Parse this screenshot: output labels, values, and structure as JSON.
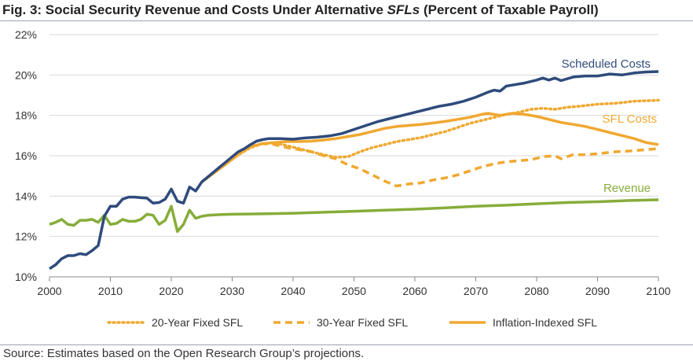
{
  "figure": {
    "title_prefix": "Fig. 3: Social Security Revenue and Costs Under Alternative ",
    "title_italic": "SFLs",
    "title_suffix": " (Percent of Taxable Payroll)",
    "source": "Source: Estimates based on the Open Research Group’s projections."
  },
  "colors": {
    "scheduled": "#2f4b7c",
    "sfl": "#f0a830",
    "revenue": "#86ad3a",
    "grid": "#d9d9d9",
    "axis": "#888888",
    "text": "#333333"
  },
  "chart_data": {
    "type": "line",
    "title": "Social Security Revenue and Costs Under Alternative SFLs (Percent of Taxable Payroll)",
    "xlabel": "",
    "ylabel": "",
    "xlim": [
      2000,
      2100
    ],
    "ylim": [
      10,
      22
    ],
    "x_ticks": [
      2000,
      2010,
      2020,
      2030,
      2040,
      2050,
      2060,
      2070,
      2080,
      2090,
      2100
    ],
    "x_tick_labels": [
      "2000",
      "2010",
      "2020",
      "2030",
      "2040",
      "2050",
      "2060",
      "2070",
      "2080",
      "2090",
      "2100"
    ],
    "y_ticks": [
      10,
      12,
      14,
      16,
      18,
      20,
      22
    ],
    "y_tick_labels": [
      "10%",
      "12%",
      "14%",
      "16%",
      "18%",
      "20%",
      "22%"
    ],
    "grid": true,
    "legend_position": "bottom",
    "annotations": [
      {
        "text": "Scheduled Costs",
        "series": "Scheduled Costs"
      },
      {
        "text": "SFL Costs",
        "series": "Inflation-Indexed SFL"
      },
      {
        "text": "Revenue",
        "series": "Revenue"
      }
    ],
    "series": [
      {
        "name": "Scheduled Costs",
        "style": "solid",
        "in_legend": false,
        "points": [
          [
            2000,
            10.4
          ],
          [
            2001,
            10.6
          ],
          [
            2002,
            10.9
          ],
          [
            2003,
            11.05
          ],
          [
            2004,
            11.05
          ],
          [
            2005,
            11.15
          ],
          [
            2006,
            11.1
          ],
          [
            2007,
            11.3
          ],
          [
            2008,
            11.55
          ],
          [
            2009,
            13.0
          ],
          [
            2010,
            13.5
          ],
          [
            2011,
            13.5
          ],
          [
            2012,
            13.85
          ],
          [
            2013,
            13.95
          ],
          [
            2014,
            13.95
          ],
          [
            2015,
            13.92
          ],
          [
            2016,
            13.9
          ],
          [
            2017,
            13.65
          ],
          [
            2018,
            13.68
          ],
          [
            2019,
            13.85
          ],
          [
            2020,
            14.35
          ],
          [
            2021,
            13.75
          ],
          [
            2022,
            13.65
          ],
          [
            2023,
            14.45
          ],
          [
            2024,
            14.25
          ],
          [
            2025,
            14.7
          ],
          [
            2026,
            14.95
          ],
          [
            2027,
            15.2
          ],
          [
            2028,
            15.45
          ],
          [
            2029,
            15.7
          ],
          [
            2030,
            15.95
          ],
          [
            2031,
            16.2
          ],
          [
            2032,
            16.35
          ],
          [
            2033,
            16.55
          ],
          [
            2034,
            16.72
          ],
          [
            2035,
            16.8
          ],
          [
            2036,
            16.85
          ],
          [
            2037,
            16.85
          ],
          [
            2038,
            16.85
          ],
          [
            2040,
            16.82
          ],
          [
            2042,
            16.88
          ],
          [
            2044,
            16.92
          ],
          [
            2046,
            16.98
          ],
          [
            2048,
            17.1
          ],
          [
            2050,
            17.3
          ],
          [
            2052,
            17.5
          ],
          [
            2054,
            17.7
          ],
          [
            2056,
            17.85
          ],
          [
            2058,
            18.0
          ],
          [
            2060,
            18.15
          ],
          [
            2062,
            18.3
          ],
          [
            2064,
            18.45
          ],
          [
            2066,
            18.55
          ],
          [
            2068,
            18.7
          ],
          [
            2070,
            18.9
          ],
          [
            2072,
            19.15
          ],
          [
            2073,
            19.25
          ],
          [
            2074,
            19.2
          ],
          [
            2075,
            19.45
          ],
          [
            2076,
            19.5
          ],
          [
            2078,
            19.6
          ],
          [
            2080,
            19.75
          ],
          [
            2081,
            19.85
          ],
          [
            2082,
            19.75
          ],
          [
            2083,
            19.85
          ],
          [
            2084,
            19.72
          ],
          [
            2086,
            19.9
          ],
          [
            2088,
            19.95
          ],
          [
            2090,
            19.95
          ],
          [
            2092,
            20.05
          ],
          [
            2094,
            20.0
          ],
          [
            2096,
            20.1
          ],
          [
            2098,
            20.15
          ],
          [
            2100,
            20.17
          ]
        ]
      },
      {
        "name": "Revenue",
        "style": "solid",
        "in_legend": false,
        "points": [
          [
            2000,
            12.6
          ],
          [
            2001,
            12.7
          ],
          [
            2002,
            12.85
          ],
          [
            2003,
            12.6
          ],
          [
            2004,
            12.55
          ],
          [
            2005,
            12.8
          ],
          [
            2006,
            12.8
          ],
          [
            2007,
            12.85
          ],
          [
            2008,
            12.7
          ],
          [
            2009,
            13.05
          ],
          [
            2010,
            12.6
          ],
          [
            2011,
            12.65
          ],
          [
            2012,
            12.85
          ],
          [
            2013,
            12.75
          ],
          [
            2014,
            12.75
          ],
          [
            2015,
            12.85
          ],
          [
            2016,
            13.1
          ],
          [
            2017,
            13.05
          ],
          [
            2018,
            12.6
          ],
          [
            2019,
            12.8
          ],
          [
            2020,
            13.5
          ],
          [
            2021,
            12.25
          ],
          [
            2022,
            12.6
          ],
          [
            2023,
            13.3
          ],
          [
            2024,
            12.9
          ],
          [
            2025,
            13.0
          ],
          [
            2026,
            13.05
          ],
          [
            2028,
            13.08
          ],
          [
            2030,
            13.1
          ],
          [
            2035,
            13.12
          ],
          [
            2040,
            13.15
          ],
          [
            2045,
            13.2
          ],
          [
            2050,
            13.25
          ],
          [
            2055,
            13.3
          ],
          [
            2060,
            13.35
          ],
          [
            2065,
            13.42
          ],
          [
            2070,
            13.5
          ],
          [
            2075,
            13.55
          ],
          [
            2080,
            13.62
          ],
          [
            2085,
            13.68
          ],
          [
            2090,
            13.72
          ],
          [
            2095,
            13.78
          ],
          [
            2100,
            13.82
          ]
        ]
      },
      {
        "name": "20-Year Fixed SFL",
        "style": "dotted",
        "in_legend": true,
        "points": [
          [
            2025,
            14.7
          ],
          [
            2027,
            15.15
          ],
          [
            2029,
            15.6
          ],
          [
            2031,
            16.05
          ],
          [
            2033,
            16.4
          ],
          [
            2035,
            16.6
          ],
          [
            2037,
            16.65
          ],
          [
            2039,
            16.5
          ],
          [
            2041,
            16.35
          ],
          [
            2043,
            16.2
          ],
          [
            2045,
            16.05
          ],
          [
            2047,
            15.92
          ],
          [
            2049,
            15.95
          ],
          [
            2051,
            16.2
          ],
          [
            2053,
            16.4
          ],
          [
            2055,
            16.55
          ],
          [
            2057,
            16.7
          ],
          [
            2059,
            16.8
          ],
          [
            2061,
            16.9
          ],
          [
            2063,
            17.05
          ],
          [
            2065,
            17.2
          ],
          [
            2067,
            17.4
          ],
          [
            2069,
            17.6
          ],
          [
            2071,
            17.75
          ],
          [
            2073,
            17.9
          ],
          [
            2075,
            18.05
          ],
          [
            2077,
            18.15
          ],
          [
            2079,
            18.3
          ],
          [
            2081,
            18.35
          ],
          [
            2083,
            18.3
          ],
          [
            2085,
            18.4
          ],
          [
            2087,
            18.45
          ],
          [
            2090,
            18.55
          ],
          [
            2093,
            18.6
          ],
          [
            2096,
            18.7
          ],
          [
            2100,
            18.75
          ]
        ]
      },
      {
        "name": "30-Year Fixed SFL",
        "style": "dashed",
        "in_legend": true,
        "points": [
          [
            2025,
            14.7
          ],
          [
            2027,
            15.15
          ],
          [
            2029,
            15.6
          ],
          [
            2031,
            16.05
          ],
          [
            2033,
            16.45
          ],
          [
            2035,
            16.6
          ],
          [
            2037,
            16.55
          ],
          [
            2039,
            16.4
          ],
          [
            2041,
            16.3
          ],
          [
            2043,
            16.2
          ],
          [
            2045,
            16.0
          ],
          [
            2047,
            15.85
          ],
          [
            2049,
            15.55
          ],
          [
            2051,
            15.35
          ],
          [
            2053,
            15.05
          ],
          [
            2055,
            14.75
          ],
          [
            2057,
            14.5
          ],
          [
            2059,
            14.6
          ],
          [
            2061,
            14.65
          ],
          [
            2063,
            14.8
          ],
          [
            2065,
            14.9
          ],
          [
            2067,
            15.05
          ],
          [
            2069,
            15.25
          ],
          [
            2071,
            15.45
          ],
          [
            2073,
            15.6
          ],
          [
            2075,
            15.7
          ],
          [
            2077,
            15.75
          ],
          [
            2079,
            15.8
          ],
          [
            2081,
            15.95
          ],
          [
            2083,
            16.0
          ],
          [
            2084,
            15.85
          ],
          [
            2086,
            16.05
          ],
          [
            2088,
            16.05
          ],
          [
            2090,
            16.1
          ],
          [
            2093,
            16.2
          ],
          [
            2096,
            16.25
          ],
          [
            2100,
            16.35
          ]
        ]
      },
      {
        "name": "Inflation-Indexed SFL",
        "style": "solid",
        "in_legend": true,
        "points": [
          [
            2025,
            14.7
          ],
          [
            2027,
            15.15
          ],
          [
            2029,
            15.6
          ],
          [
            2031,
            16.05
          ],
          [
            2033,
            16.45
          ],
          [
            2035,
            16.6
          ],
          [
            2037,
            16.65
          ],
          [
            2039,
            16.7
          ],
          [
            2041,
            16.7
          ],
          [
            2043,
            16.72
          ],
          [
            2045,
            16.78
          ],
          [
            2047,
            16.85
          ],
          [
            2049,
            16.95
          ],
          [
            2051,
            17.05
          ],
          [
            2053,
            17.2
          ],
          [
            2055,
            17.35
          ],
          [
            2057,
            17.45
          ],
          [
            2059,
            17.5
          ],
          [
            2061,
            17.55
          ],
          [
            2063,
            17.62
          ],
          [
            2065,
            17.7
          ],
          [
            2067,
            17.8
          ],
          [
            2069,
            17.9
          ],
          [
            2071,
            18.05
          ],
          [
            2072,
            18.1
          ],
          [
            2074,
            18.0
          ],
          [
            2076,
            18.1
          ],
          [
            2078,
            18.05
          ],
          [
            2080,
            17.95
          ],
          [
            2082,
            17.8
          ],
          [
            2084,
            17.65
          ],
          [
            2086,
            17.55
          ],
          [
            2088,
            17.45
          ],
          [
            2090,
            17.3
          ],
          [
            2092,
            17.15
          ],
          [
            2094,
            17.0
          ],
          [
            2096,
            16.85
          ],
          [
            2098,
            16.65
          ],
          [
            2100,
            16.55
          ]
        ]
      }
    ]
  }
}
